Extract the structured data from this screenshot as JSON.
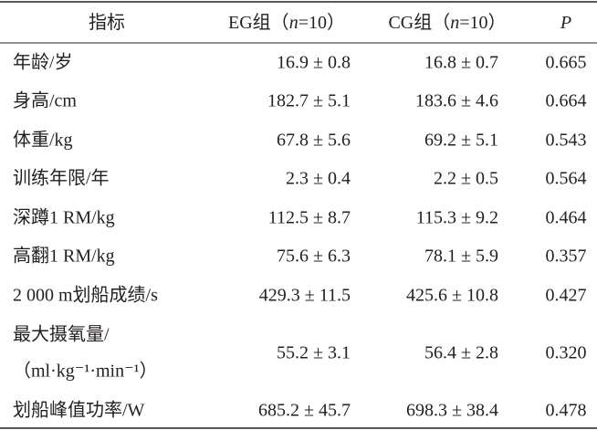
{
  "table": {
    "header": [
      [
        "指标"
      ],
      [
        "EG组（",
        "n",
        "=10）"
      ],
      [
        "CG组（",
        "n",
        "=10）"
      ],
      [
        "P"
      ]
    ],
    "rows": [
      [
        [
          "年龄/岁"
        ],
        "16.9 ± 0.8",
        "16.8 ± 0.7",
        "0.665"
      ],
      [
        [
          "身高/cm"
        ],
        "182.7 ± 5.1",
        "183.6 ± 4.6",
        "0.664"
      ],
      [
        [
          "体重/kg"
        ],
        "67.8 ± 5.6",
        "69.2 ± 5.1",
        "0.543"
      ],
      [
        [
          "训练年限/年"
        ],
        "2.3 ± 0.4",
        "2.2 ± 0.5",
        "0.564"
      ],
      [
        [
          "深蹲1 RM/kg"
        ],
        "112.5 ± 8.7",
        "115.3 ± 9.2",
        "0.464"
      ],
      [
        [
          "高翻1 RM/kg"
        ],
        "75.6 ± 6.3",
        "78.1 ± 5.9",
        "0.357"
      ],
      [
        [
          "2 000 m划船成绩/s"
        ],
        "429.3 ± 11.5",
        "425.6 ± 10.8",
        "0.427"
      ],
      [
        [
          "最大摄氧量/",
          "（ml·kg⁻¹·min⁻¹）"
        ],
        "55.2 ± 3.1",
        "56.4 ± 2.8",
        "0.320"
      ],
      [
        [
          "划船峰值功率/W"
        ],
        "685.2 ± 45.7",
        "698.3 ± 38.4",
        "0.478"
      ]
    ]
  }
}
